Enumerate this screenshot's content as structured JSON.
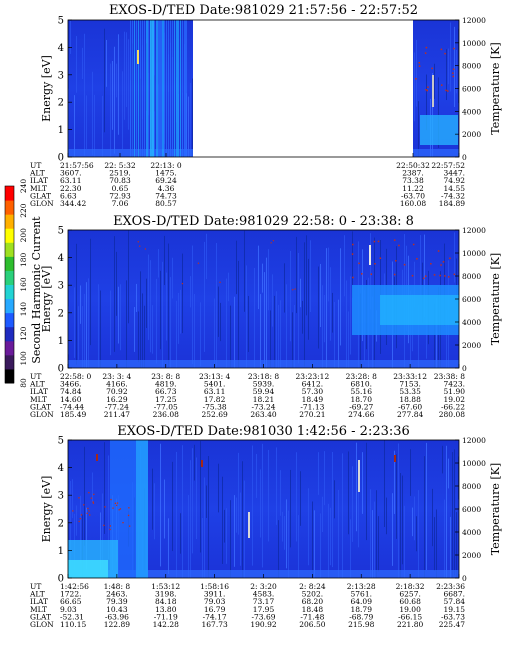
{
  "panels": [
    {
      "title": "EXOS-D/TED   Date:981029  21:57:56 - 22:57:52",
      "ylabel": "Energy [eV]",
      "y2label": "Temperature [K]",
      "yticks": [
        "0",
        "1",
        "2",
        "3",
        "4",
        "5"
      ],
      "y2ticks": [
        "0",
        "2000",
        "4000",
        "6000",
        "8000",
        "10000",
        "12000"
      ],
      "rows": [
        {
          "label": "UT",
          "cols": [
            "21:57:56",
            "22: 5:32",
            "22:13: 0",
            "",
            "22:50:32",
            "22:57:52"
          ]
        },
        {
          "label": "ALT",
          "cols": [
            "3607.",
            "2519.",
            "1475.",
            "",
            "2387.",
            "3447."
          ]
        },
        {
          "label": "ILAT",
          "cols": [
            "63.11",
            "70.83",
            "69.24",
            "",
            "73.38",
            "74.92"
          ]
        },
        {
          "label": "MLT",
          "cols": [
            "22.30",
            "0.65",
            "4.36",
            "",
            "11.22",
            "14.55"
          ]
        },
        {
          "label": "GLAT",
          "cols": [
            "6.63",
            "72.93",
            "74.73",
            "",
            "-63.70",
            "-74.32"
          ]
        },
        {
          "label": "GLON",
          "cols": [
            "344.42",
            "7.06",
            "80.57",
            "",
            "160.08",
            "184.89"
          ]
        }
      ]
    },
    {
      "title": "EXOS-D/TED   Date:981029  22:58: 0 - 23:38: 8",
      "ylabel": "Energy [eV]",
      "y2label": "Temperature [K]",
      "yticks": [
        "0",
        "1",
        "2",
        "3",
        "4",
        "5"
      ],
      "y2ticks": [
        "0",
        "2000",
        "4000",
        "6000",
        "8000",
        "10000",
        "12000"
      ],
      "rows": [
        {
          "label": "UT",
          "cols": [
            "22:58: 0",
            "23: 3: 4",
            "23: 8: 8",
            "23:13: 4",
            "23:18: 8",
            "23:23:12",
            "23:28: 8",
            "23:33:12",
            "23:38: 8"
          ]
        },
        {
          "label": "ALT",
          "cols": [
            "3466.",
            "4166.",
            "4819.",
            "5401.",
            "5939.",
            "6412.",
            "6810.",
            "7153.",
            "7423."
          ]
        },
        {
          "label": "ILAT",
          "cols": [
            "74.84",
            "70.92",
            "66.73",
            "63.11",
            "59.94",
            "57.30",
            "55.16",
            "53.35",
            "51.90"
          ]
        },
        {
          "label": "MLT",
          "cols": [
            "14.60",
            "16.29",
            "17.25",
            "17.82",
            "18.21",
            "18.49",
            "18.70",
            "18.88",
            "19.02"
          ]
        },
        {
          "label": "GLAT",
          "cols": [
            "-74.44",
            "-77.24",
            "-77.05",
            "-75.38",
            "-73.24",
            "-71.13",
            "-69.27",
            "-67.60",
            "-66.22"
          ]
        },
        {
          "label": "GLON",
          "cols": [
            "185.49",
            "211.47",
            "236.08",
            "252.69",
            "263.40",
            "270.21",
            "274.66",
            "277.84",
            "280.08"
          ]
        }
      ]
    },
    {
      "title": "EXOS-D/TED   Date:981030  1:42:56 - 2:23:36",
      "ylabel": "Energy [eV]",
      "y2label": "Temperature [K]",
      "yticks": [
        "0",
        "1",
        "2",
        "3",
        "4",
        "5"
      ],
      "y2ticks": [
        "0",
        "2000",
        "4000",
        "6000",
        "8000",
        "10000",
        "12000"
      ],
      "rows": [
        {
          "label": "UT",
          "cols": [
            "1:42:56",
            "1:48: 8",
            "1:53:12",
            "1:58:16",
            "2: 3:20",
            "2: 8:24",
            "2:13:28",
            "2:18:32",
            "2:23:36"
          ]
        },
        {
          "label": "ALT",
          "cols": [
            "1722.",
            "2463.",
            "3198.",
            "3911.",
            "4583.",
            "5202.",
            "5761.",
            "6257.",
            "6687."
          ]
        },
        {
          "label": "ILAT",
          "cols": [
            "66.65",
            "79.39",
            "84.18",
            "79.03",
            "73.17",
            "68.20",
            "64.09",
            "60.68",
            "57.84"
          ]
        },
        {
          "label": "MLT",
          "cols": [
            "9.03",
            "10.43",
            "13.80",
            "16.79",
            "17.95",
            "18.48",
            "18.79",
            "19.00",
            "19.15"
          ]
        },
        {
          "label": "GLAT",
          "cols": [
            "-52.31",
            "-63.96",
            "-71.19",
            "-74.17",
            "-73.69",
            "-71.48",
            "-68.79",
            "-66.15",
            "-63.73"
          ]
        },
        {
          "label": "GLON",
          "cols": [
            "110.15",
            "122.89",
            "142.28",
            "167.73",
            "190.92",
            "206.50",
            "215.98",
            "221.80",
            "225.47"
          ]
        }
      ]
    }
  ],
  "colorbar": {
    "label": "Second Harmonic Current",
    "ticks": [
      "80",
      "100",
      "120",
      "140",
      "160",
      "180",
      "200",
      "220",
      "240"
    ],
    "range": [
      80,
      240
    ],
    "colors": [
      "#000000",
      "#3a1a5c",
      "#6a1b9a",
      "#1f2bbf",
      "#1e5aff",
      "#27a9ff",
      "#22d3d3",
      "#2ad07b",
      "#2ebd2e",
      "#9fe020",
      "#ffff00",
      "#ffb000",
      "#ff6000",
      "#ff0000"
    ]
  },
  "chart_data": [
    {
      "type": "heatmap",
      "title": "EXOS-D/TED   Date:981029  21:57:56 - 22:57:52",
      "xlabel": "",
      "ylabel": "Energy [eV]",
      "y2label": "Temperature [K]",
      "ylim": [
        0,
        5
      ],
      "y2lim": [
        0,
        12000
      ],
      "data_gap": [
        "22:13: 0",
        "22:50:32"
      ],
      "value_range": [
        80,
        240
      ]
    },
    {
      "type": "heatmap",
      "title": "EXOS-D/TED   Date:981029  22:58: 0 - 23:38: 8",
      "xlabel": "",
      "ylabel": "Energy [eV]",
      "y2label": "Temperature [K]",
      "ylim": [
        0,
        5
      ],
      "y2lim": [
        0,
        12000
      ],
      "value_range": [
        80,
        240
      ]
    },
    {
      "type": "heatmap",
      "title": "EXOS-D/TED   Date:981030  1:42:56 - 2:23:36",
      "xlabel": "",
      "ylabel": "Energy [eV]",
      "y2label": "Temperature [K]",
      "ylim": [
        0,
        5
      ],
      "y2lim": [
        0,
        12000
      ],
      "value_range": [
        80,
        240
      ]
    }
  ]
}
